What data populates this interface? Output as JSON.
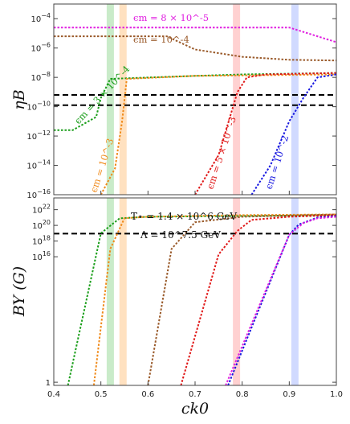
{
  "chart_data": [
    {
      "type": "line",
      "panel": "top",
      "ylabel": "ηB",
      "yscale": "log",
      "xlim": [
        0.4,
        1.0
      ],
      "ylim_exp": [
        -16,
        -3
      ],
      "ytick_labels": [
        "10^-4",
        "10^-6",
        "10^-8",
        "10^-10",
        "10^-12",
        "10^-14",
        "10^-16"
      ],
      "bands": [
        {
          "x": 0.52,
          "color": "#bfe8bf"
        },
        {
          "x": 0.547,
          "color": "#ffdcb5"
        },
        {
          "x": 0.788,
          "color": "#ffc9c9"
        },
        {
          "x": 0.912,
          "color": "#c9d4ff"
        }
      ],
      "hlines_exp": [
        -9.2,
        -9.9
      ],
      "series": [
        {
          "label": "ϵm = 8 × 10^-5",
          "color": "#e020e0",
          "x": [
            0.4,
            0.9,
            1.0
          ],
          "log10y": [
            -4.6,
            -4.6,
            -5.6
          ]
        },
        {
          "label": "ϵm = 10^-4",
          "color": "#9a5a2a",
          "x": [
            0.4,
            0.64,
            0.7,
            0.8,
            0.9,
            1.0
          ],
          "log10y": [
            -5.2,
            -5.2,
            -6.1,
            -6.6,
            -6.8,
            -6.85
          ]
        },
        {
          "label": "ϵm = 3 × 10^-4",
          "color": "#1a9e1a",
          "x": [
            0.4,
            0.44,
            0.49,
            0.5,
            0.52,
            0.7,
            0.8,
            0.9,
            1.0
          ],
          "log10y": [
            -11.6,
            -11.6,
            -10.7,
            -9.4,
            -8.1,
            -7.9,
            -7.8,
            -7.75,
            -7.7
          ]
        },
        {
          "label": "ϵm = 10^-3",
          "color": "#f08a1a",
          "x": [
            0.5,
            0.53,
            0.545,
            0.555,
            0.7,
            1.0
          ],
          "log10y": [
            -16.0,
            -14.2,
            -11.0,
            -8.1,
            -7.9,
            -7.8
          ]
        },
        {
          "label": "ϵm = 5 × 10^-3",
          "color": "#e01818",
          "x": [
            0.7,
            0.75,
            0.79,
            0.81,
            0.85,
            1.0
          ],
          "log10y": [
            -16.0,
            -13.3,
            -9.0,
            -8.0,
            -7.8,
            -7.7
          ]
        },
        {
          "label": "ϵm = 10^-2",
          "color": "#1818e0",
          "x": [
            0.82,
            0.86,
            0.9,
            0.93,
            0.96,
            1.0
          ],
          "log10y": [
            -16.0,
            -14.0,
            -11.0,
            -9.4,
            -8.0,
            -7.8
          ]
        }
      ]
    },
    {
      "type": "line",
      "panel": "bottom",
      "ylabel": "BY (G)",
      "xlabel": "ck0",
      "yscale": "log",
      "xlim": [
        0.4,
        1.0
      ],
      "xtick_labels": [
        "0.4",
        "0.5",
        "0.6",
        "0.7",
        "0.8",
        "0.9",
        "1.0"
      ],
      "ylim_exp": [
        -0.4,
        23.5
      ],
      "ytick_labels": [
        "10^22",
        "10^20",
        "10^18",
        "10^16",
        "1"
      ],
      "hlines_exp": [
        18.95
      ],
      "params": [
        "T⋆ = 1.4 × 10^6 GeV",
        "Λ = 10^7.5 GeV"
      ],
      "series": [
        {
          "color": "#1a9e1a",
          "x": [
            0.43,
            0.5,
            0.54,
            0.6,
            0.8,
            1.0
          ],
          "log10y": [
            -0.4,
            19.0,
            20.9,
            21.1,
            21.2,
            21.3
          ]
        },
        {
          "color": "#f08a1a",
          "x": [
            0.485,
            0.52,
            0.55,
            0.6,
            0.8,
            1.0
          ],
          "log10y": [
            -0.4,
            17.0,
            20.9,
            21.1,
            21.3,
            21.4
          ]
        },
        {
          "color": "#9a5a2a",
          "x": [
            0.6,
            0.65,
            0.7,
            0.8,
            1.0
          ],
          "log10y": [
            -0.4,
            17.0,
            20.4,
            21.1,
            21.4
          ]
        },
        {
          "color": "#e01818",
          "x": [
            0.67,
            0.75,
            0.79,
            0.82,
            0.9,
            1.0
          ],
          "log10y": [
            -0.4,
            16.3,
            19.3,
            20.7,
            21.1,
            21.3
          ]
        },
        {
          "color": "#1818e0",
          "x": [
            0.77,
            0.9,
            0.92,
            0.96,
            1.0
          ],
          "log10y": [
            -0.4,
            18.8,
            20.1,
            21.0,
            21.2
          ]
        },
        {
          "color": "#e020e0",
          "x": [
            0.765,
            0.9,
            0.93,
            0.96,
            1.0
          ],
          "log10y": [
            -0.4,
            18.8,
            20.3,
            20.9,
            21.1
          ]
        }
      ]
    }
  ]
}
